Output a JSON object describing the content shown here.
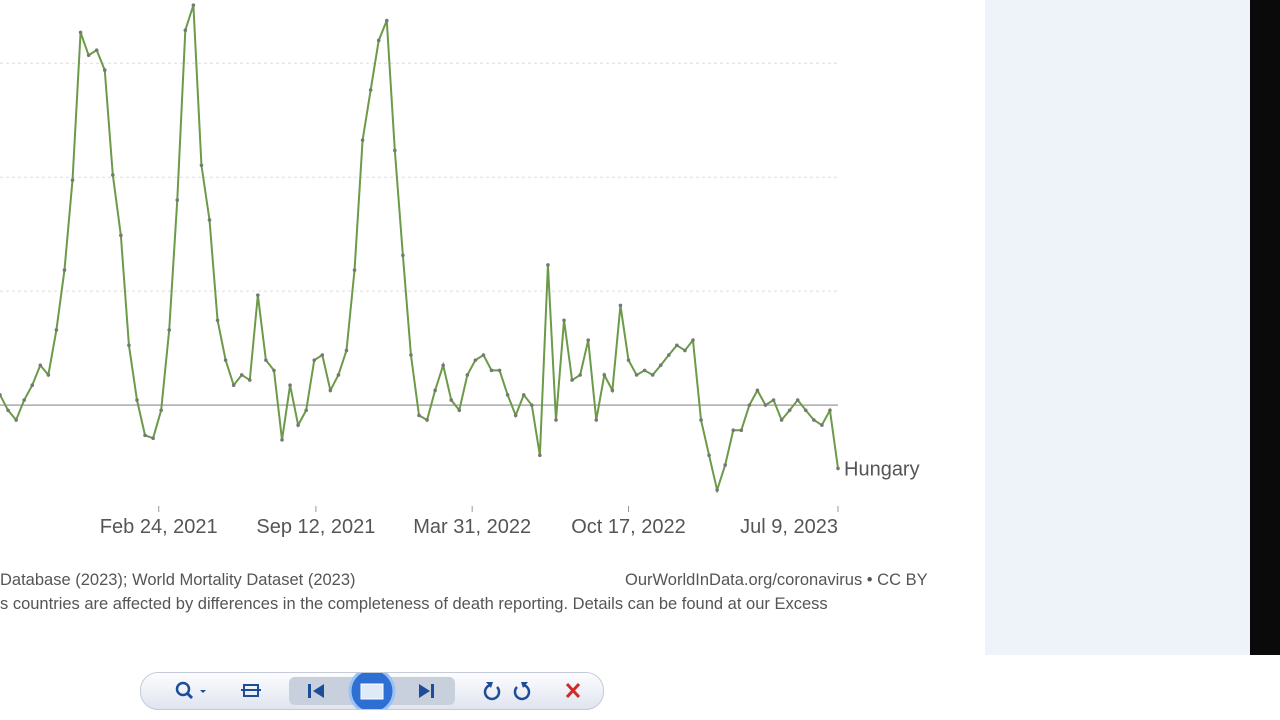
{
  "chart_data": {
    "type": "line",
    "series": [
      {
        "name": "Hungary",
        "color": "#6b9a48",
        "values": [
          1.8,
          -0.9,
          -2.6,
          0.9,
          3.5,
          7.0,
          5.3,
          13.2,
          23.7,
          39.5,
          65.4,
          61.4,
          62.3,
          58.8,
          40.4,
          29.8,
          10.5,
          0.9,
          -5.3,
          -5.8,
          -0.9,
          13.2,
          36.0,
          65.8,
          70.2,
          42.1,
          32.5,
          14.9,
          7.9,
          3.5,
          5.3,
          4.4,
          19.3,
          7.9,
          6.1,
          -6.1,
          3.5,
          -3.5,
          -0.9,
          7.9,
          8.8,
          2.6,
          5.3,
          9.6,
          23.7,
          46.5,
          55.3,
          64.0,
          67.5,
          44.7,
          26.3,
          8.8,
          -1.8,
          -2.6,
          2.6,
          7.0,
          0.9,
          -0.9,
          5.3,
          7.9,
          8.8,
          6.1,
          6.1,
          1.8,
          -1.8,
          1.8,
          0,
          -8.8,
          24.6,
          -2.6,
          14.9,
          4.4,
          5.3,
          11.4,
          -2.6,
          5.3,
          2.6,
          17.5,
          7.9,
          5.3,
          6.1,
          5.3,
          7.0,
          8.8,
          10.5,
          9.6,
          11.4,
          -2.6,
          -8.8,
          -14.9,
          -10.5,
          -4.4,
          -4.4,
          0,
          2.6,
          0,
          0.9,
          -2.6,
          -0.9,
          0.9,
          -0.9,
          -2.6,
          -3.5,
          -0.9,
          -11.1
        ]
      }
    ],
    "xlim": [
      0,
      104
    ],
    "xticks": [
      {
        "value": 19.7,
        "label": "Feb 24, 2021"
      },
      {
        "value": 39.2,
        "label": "Sep 12, 2021"
      },
      {
        "value": 58.6,
        "label": "Mar 31, 2022"
      },
      {
        "value": 78,
        "label": "Oct 17, 2022"
      },
      {
        "value": 104,
        "label": "Jul 9, 2023"
      }
    ],
    "ylim": [
      -18.4,
      71.1
    ],
    "yticks": [
      0,
      20,
      40,
      60
    ],
    "grid": true
  },
  "footer": {
    "source": "Database (2023); World Mortality Dataset (2023)",
    "license": "OurWorldInData.org/coronavirus • CC BY",
    "note": "s countries are affected by differences in the completeness of death reporting. Details can be found at our Excess"
  }
}
